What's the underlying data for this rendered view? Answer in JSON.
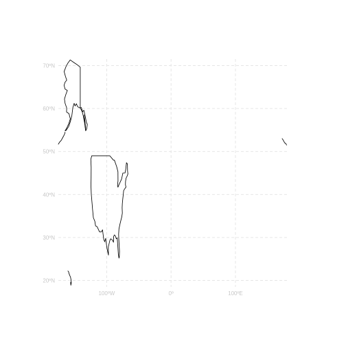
{
  "map": {
    "projection": "plate carree",
    "lon_range": [
      -175,
      180
    ],
    "lat_range": [
      18.5,
      71.5
    ],
    "grid_color": "#e3e3e3",
    "label_color": "#c8c8c8",
    "coastline_color": "#000000",
    "lat_labels": [
      {
        "lat": 70,
        "text": "70ºN"
      },
      {
        "lat": 60,
        "text": "60ºN"
      },
      {
        "lat": 50,
        "text": "50ºN"
      },
      {
        "lat": 40,
        "text": "40ºN"
      },
      {
        "lat": 30,
        "text": "30ºN"
      },
      {
        "lat": 20,
        "text": "20ºN"
      }
    ],
    "lon_labels": [
      {
        "lon": -100,
        "text": "100ºW"
      },
      {
        "lon": 0,
        "text": "0º"
      },
      {
        "lon": 100,
        "text": "100ºE"
      }
    ],
    "regions": [
      {
        "name": "alaska-coastline",
        "points": [
          [
            -141,
            69.6
          ],
          [
            -146,
            70.2
          ],
          [
            -152,
            70.8
          ],
          [
            -156.6,
            71.3
          ],
          [
            -160,
            70.6
          ],
          [
            -163,
            69.8
          ],
          [
            -166,
            68.6
          ],
          [
            -164,
            67.5
          ],
          [
            -162,
            66.6
          ],
          [
            -164.5,
            66.1
          ],
          [
            -166.2,
            65.4
          ],
          [
            -164.5,
            64.5
          ],
          [
            -161,
            64.2
          ],
          [
            -163.5,
            63.2
          ],
          [
            -165.5,
            62.2
          ],
          [
            -164.6,
            61.2
          ],
          [
            -162,
            60.1
          ],
          [
            -162.3,
            59.2
          ],
          [
            -158.5,
            58.8
          ],
          [
            -156.5,
            57.6
          ],
          [
            -158.5,
            56.6
          ],
          [
            -161.5,
            55.6
          ],
          [
            -164.5,
            54.8
          ],
          [
            -163,
            54.9
          ],
          [
            -159,
            55.8
          ],
          [
            -156.5,
            56.9
          ],
          [
            -154,
            58.4
          ],
          [
            -152.5,
            60.2
          ],
          [
            -150.5,
            61.2
          ],
          [
            -149,
            60.6
          ],
          [
            -147,
            61.1
          ],
          [
            -145,
            60.4
          ],
          [
            -141,
            60.1
          ],
          [
            -139,
            59.6
          ],
          [
            -137.5,
            59
          ],
          [
            -136.2,
            58.2
          ],
          [
            -135.2,
            57.4
          ],
          [
            -134.2,
            56.6
          ],
          [
            -133.3,
            55.6
          ],
          [
            -132.6,
            54.8
          ],
          [
            -131.2,
            55.2
          ],
          [
            -130.3,
            55.9
          ],
          [
            -130,
            56.3
          ],
          [
            -131.5,
            56.8
          ],
          [
            -133.5,
            58.4
          ],
          [
            -135.5,
            59.6
          ],
          [
            -137.5,
            59.2
          ],
          [
            -139.2,
            60.2
          ],
          [
            -141,
            60.3
          ],
          [
            -141,
            69.6
          ]
        ]
      },
      {
        "name": "alaska-panhandle-islands",
        "points": [
          [
            -135,
            58.5
          ],
          [
            -134.4,
            57.5
          ],
          [
            -133.8,
            56.5
          ],
          [
            -133,
            55.5
          ],
          [
            -132.5,
            55
          ],
          [
            -132.9,
            55.8
          ],
          [
            -133.6,
            56.8
          ],
          [
            -134.3,
            57.8
          ],
          [
            -135,
            58.5
          ]
        ]
      },
      {
        "name": "aleutian-islands",
        "points": [
          [
            -175,
            51.7
          ],
          [
            -173,
            52.2
          ],
          [
            -170.5,
            52.6
          ],
          [
            -168,
            53.3
          ],
          [
            -166.5,
            53.7
          ],
          [
            -165,
            54.2
          ],
          [
            -164.5,
            54.5
          ]
        ]
      },
      {
        "name": "conus-coastline",
        "points": [
          [
            -123.1,
            49
          ],
          [
            -124.6,
            48.2
          ],
          [
            -124,
            46.3
          ],
          [
            -124.1,
            43.8
          ],
          [
            -124.4,
            42
          ],
          [
            -123.8,
            40
          ],
          [
            -122.5,
            37.8
          ],
          [
            -121.9,
            36.6
          ],
          [
            -120.6,
            34.6
          ],
          [
            -118.4,
            33.8
          ],
          [
            -117.2,
            32.7
          ],
          [
            -114.8,
            32.5
          ],
          [
            -111,
            31.3
          ],
          [
            -108.2,
            31.3
          ],
          [
            -106.5,
            31.8
          ],
          [
            -104.5,
            29.6
          ],
          [
            -103,
            29
          ],
          [
            -101.5,
            29.8
          ],
          [
            -99.5,
            27.5
          ],
          [
            -97.2,
            25.9
          ],
          [
            -97.4,
            27.8
          ],
          [
            -95,
            29.3
          ],
          [
            -93.8,
            29.7
          ],
          [
            -91,
            29.4
          ],
          [
            -89.4,
            28.9
          ],
          [
            -89.2,
            30.2
          ],
          [
            -88,
            30.6
          ],
          [
            -86.5,
            30.4
          ],
          [
            -85,
            29.7
          ],
          [
            -83.5,
            29.9
          ],
          [
            -82.7,
            28
          ],
          [
            -81.8,
            26.1
          ],
          [
            -80.9,
            25.2
          ],
          [
            -80.3,
            25.5
          ],
          [
            -80,
            26.8
          ],
          [
            -80.6,
            28.4
          ],
          [
            -81.2,
            29.8
          ],
          [
            -81.4,
            30.8
          ],
          [
            -80.9,
            32
          ],
          [
            -79.2,
            33.2
          ],
          [
            -77.9,
            34
          ],
          [
            -76.5,
            34.8
          ],
          [
            -75.6,
            35.7
          ],
          [
            -76,
            36.9
          ],
          [
            -75.6,
            37.9
          ],
          [
            -75,
            38.9
          ],
          [
            -74,
            40.2
          ],
          [
            -73.6,
            40.9
          ],
          [
            -72,
            41.3
          ],
          [
            -70.6,
            41.6
          ],
          [
            -70,
            41.7
          ],
          [
            -70.8,
            42.3
          ],
          [
            -70.6,
            43.1
          ],
          [
            -69.8,
            43.8
          ],
          [
            -68.2,
            44.3
          ],
          [
            -67,
            44.8
          ],
          [
            -67.5,
            45.5
          ],
          [
            -67.8,
            47.1
          ],
          [
            -69.2,
            47.4
          ],
          [
            -70.3,
            45.9
          ],
          [
            -71.5,
            45
          ],
          [
            -74.8,
            45
          ],
          [
            -76.8,
            43.6
          ],
          [
            -78.9,
            42.9
          ],
          [
            -80.5,
            42.4
          ],
          [
            -82.5,
            41.7
          ],
          [
            -83.1,
            42.1
          ],
          [
            -82.4,
            43.2
          ],
          [
            -82.5,
            45.3
          ],
          [
            -84.5,
            46.5
          ],
          [
            -88,
            48
          ],
          [
            -89.5,
            48
          ],
          [
            -95.2,
            49
          ],
          [
            -123.1,
            49
          ]
        ]
      },
      {
        "name": "hawaii-islands",
        "points": [
          [
            -160.2,
            22.2
          ],
          [
            -159.3,
            22.1
          ],
          [
            -158.2,
            21.5
          ],
          [
            -157.1,
            21.1
          ],
          [
            -156.1,
            20.8
          ],
          [
            -155.3,
            20.1
          ],
          [
            -154.9,
            19.5
          ],
          [
            -155.6,
            18.9
          ],
          [
            -156,
            19.6
          ]
        ]
      },
      {
        "name": "attu-islands-east",
        "points": [
          [
            172.5,
            53
          ],
          [
            173.5,
            52.8
          ],
          [
            175,
            52.4
          ],
          [
            176.5,
            52
          ],
          [
            178,
            51.9
          ],
          [
            179.5,
            51.5
          ]
        ]
      }
    ]
  }
}
